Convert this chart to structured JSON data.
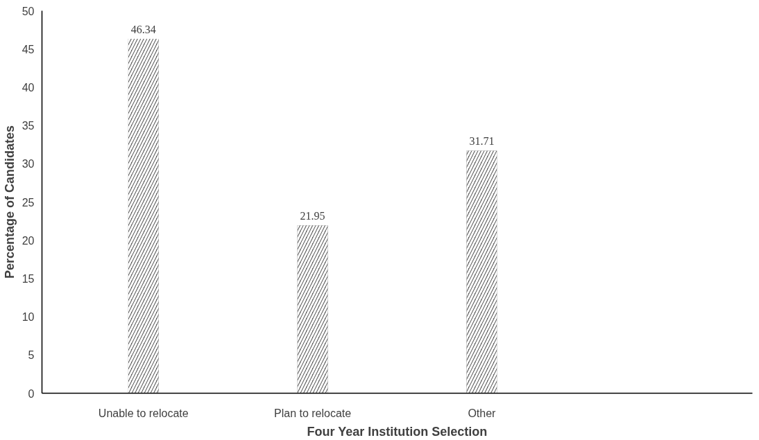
{
  "chart_data": {
    "type": "bar",
    "xlabel": "Four Year Institution Selection",
    "ylabel": "Percentage of Candidates",
    "categories": [
      "Unable to relocate",
      "Plan to relocate",
      "Other",
      null
    ],
    "values": [
      46.34,
      21.95,
      31.71,
      null
    ],
    "color": "#595959",
    "ylim": [
      0,
      50
    ],
    "yticks": [
      0,
      5,
      10,
      15,
      20,
      25,
      30,
      35,
      40,
      45,
      50
    ],
    "grid": false,
    "data_labels": true
  }
}
